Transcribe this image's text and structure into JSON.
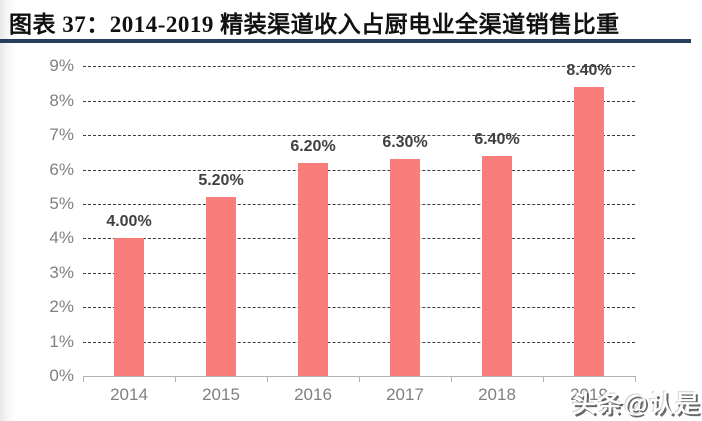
{
  "page": {
    "title": "图表 37：2014-2019 精装渠道收入占厨电业全渠道销售比重",
    "accent_rule_color": "#24405E",
    "watermark": "头条@认是"
  },
  "chart_data": {
    "type": "bar",
    "title": "2014-2019 精装渠道收入占厨电业全渠道销售比重",
    "categories": [
      "2014",
      "2015",
      "2016",
      "2017",
      "2018",
      "2019"
    ],
    "values": [
      4.0,
      5.2,
      6.2,
      6.3,
      6.4,
      8.4
    ],
    "value_labels": [
      "4.00%",
      "5.20%",
      "6.20%",
      "6.30%",
      "6.40%",
      "8.40%"
    ],
    "xlabel": "",
    "ylabel": "",
    "ylim": [
      0,
      9
    ],
    "ytick_labels": [
      "0%",
      "1%",
      "2%",
      "3%",
      "4%",
      "5%",
      "6%",
      "7%",
      "8%",
      "9%"
    ],
    "grid": "horizontal-dashed",
    "legend": "none",
    "bar_color": "#F97D7B",
    "axis_label_color": "#808080",
    "data_label_color": "#404040"
  }
}
